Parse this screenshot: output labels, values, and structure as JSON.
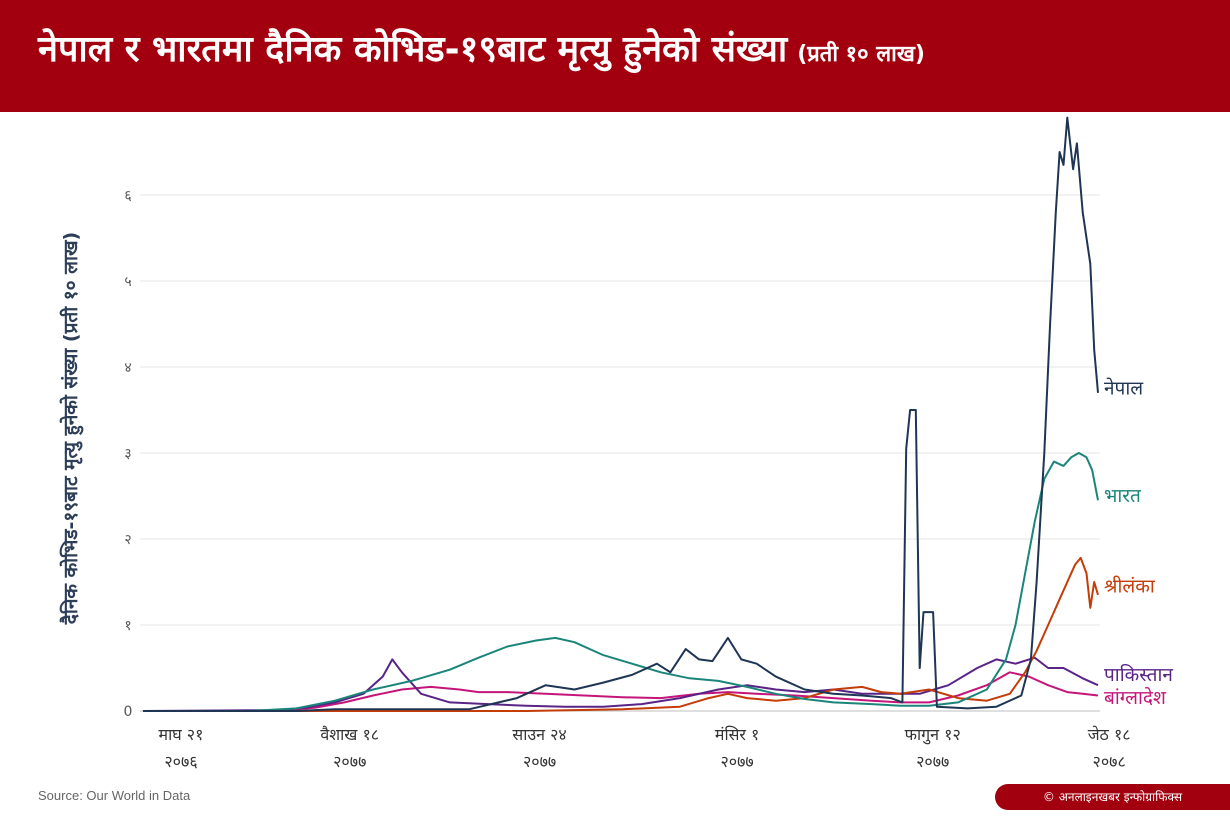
{
  "header": {
    "title": "नेपाल र भारतमा दैनिक कोभिड-१९बाट मृत्यु हुनेको संख्या",
    "title_suffix": "(प्रती १० लाख)"
  },
  "footer": {
    "source": "Source: Our World in Data",
    "credit": "© अनलाइनखबर इन्फोग्राफिक्स"
  },
  "chart_data": {
    "type": "line",
    "ylabel": "दैनिक कोभिड-१९बाट मृत्यु हुनेको संख्या (प्रती १० लाख)",
    "ylim": [
      0,
      6.8
    ],
    "y_ticks": [
      {
        "value": 0,
        "label": "0"
      },
      {
        "value": 1,
        "label": "१"
      },
      {
        "value": 2,
        "label": "२"
      },
      {
        "value": 3,
        "label": "३"
      },
      {
        "value": 4,
        "label": "४"
      },
      {
        "value": 5,
        "label": "५"
      },
      {
        "value": 6,
        "label": "६"
      }
    ],
    "x_ticks": [
      {
        "day": 0,
        "label": "माघ २१",
        "year": "२०७६"
      },
      {
        "day": 88,
        "label": "वैशाख १८",
        "year": "२०७७"
      },
      {
        "day": 187,
        "label": "साउन २४",
        "year": "२०७७"
      },
      {
        "day": 290,
        "label": "मंसिर १",
        "year": "२०७७"
      },
      {
        "day": 392,
        "label": "फागुन १२",
        "year": "२०७७"
      },
      {
        "day": 484,
        "label": "जेठ १८",
        "year": "२०७८"
      }
    ],
    "grid": true,
    "legend": "line-end labels",
    "series": [
      {
        "name": "नेपाल",
        "color": "#1f3554",
        "points": [
          [
            0,
            0
          ],
          [
            80,
            0
          ],
          [
            100,
            0.02
          ],
          [
            140,
            0.02
          ],
          [
            170,
            0.02
          ],
          [
            195,
            0.15
          ],
          [
            210,
            0.3
          ],
          [
            225,
            0.25
          ],
          [
            240,
            0.33
          ],
          [
            255,
            0.42
          ],
          [
            268,
            0.55
          ],
          [
            275,
            0.45
          ],
          [
            283,
            0.72
          ],
          [
            290,
            0.6
          ],
          [
            297,
            0.58
          ],
          [
            305,
            0.85
          ],
          [
            312,
            0.6
          ],
          [
            320,
            0.55
          ],
          [
            330,
            0.4
          ],
          [
            345,
            0.25
          ],
          [
            360,
            0.2
          ],
          [
            375,
            0.18
          ],
          [
            390,
            0.15
          ],
          [
            396,
            0.1
          ],
          [
            398,
            3.05
          ],
          [
            400,
            3.5
          ],
          [
            403,
            3.5
          ],
          [
            405,
            0.5
          ],
          [
            407,
            1.15
          ],
          [
            412,
            1.15
          ],
          [
            414,
            0.05
          ],
          [
            430,
            0.03
          ],
          [
            445,
            0.05
          ],
          [
            458,
            0.18
          ],
          [
            463,
            0.6
          ],
          [
            466,
            1.5
          ],
          [
            470,
            3.0
          ],
          [
            473,
            4.5
          ],
          [
            476,
            5.8
          ],
          [
            478,
            6.5
          ],
          [
            480,
            6.35
          ],
          [
            482,
            6.9
          ],
          [
            485,
            6.3
          ],
          [
            487,
            6.6
          ],
          [
            490,
            5.8
          ],
          [
            494,
            5.2
          ],
          [
            496,
            4.2
          ],
          [
            498,
            3.7
          ]
        ]
      },
      {
        "name": "भारत",
        "color": "#1a857a",
        "points": [
          [
            0,
            0
          ],
          [
            55,
            0
          ],
          [
            80,
            0.03
          ],
          [
            100,
            0.12
          ],
          [
            120,
            0.25
          ],
          [
            140,
            0.35
          ],
          [
            160,
            0.48
          ],
          [
            175,
            0.62
          ],
          [
            190,
            0.75
          ],
          [
            205,
            0.82
          ],
          [
            215,
            0.85
          ],
          [
            225,
            0.8
          ],
          [
            240,
            0.65
          ],
          [
            255,
            0.55
          ],
          [
            270,
            0.45
          ],
          [
            285,
            0.38
          ],
          [
            300,
            0.35
          ],
          [
            315,
            0.28
          ],
          [
            330,
            0.2
          ],
          [
            345,
            0.14
          ],
          [
            360,
            0.1
          ],
          [
            380,
            0.08
          ],
          [
            395,
            0.06
          ],
          [
            410,
            0.06
          ],
          [
            425,
            0.1
          ],
          [
            440,
            0.25
          ],
          [
            450,
            0.6
          ],
          [
            455,
            1.0
          ],
          [
            460,
            1.6
          ],
          [
            465,
            2.2
          ],
          [
            470,
            2.7
          ],
          [
            475,
            2.9
          ],
          [
            480,
            2.85
          ],
          [
            484,
            2.95
          ],
          [
            488,
            3.0
          ],
          [
            492,
            2.95
          ],
          [
            495,
            2.8
          ],
          [
            498,
            2.45
          ]
        ]
      },
      {
        "name": "श्रीलंका",
        "color": "#c43c07",
        "points": [
          [
            0,
            0
          ],
          [
            100,
            0
          ],
          [
            200,
            0
          ],
          [
            250,
            0.02
          ],
          [
            280,
            0.05
          ],
          [
            295,
            0.15
          ],
          [
            305,
            0.2
          ],
          [
            315,
            0.15
          ],
          [
            330,
            0.12
          ],
          [
            345,
            0.15
          ],
          [
            360,
            0.25
          ],
          [
            375,
            0.28
          ],
          [
            385,
            0.22
          ],
          [
            395,
            0.2
          ],
          [
            410,
            0.25
          ],
          [
            425,
            0.15
          ],
          [
            440,
            0.12
          ],
          [
            452,
            0.2
          ],
          [
            460,
            0.45
          ],
          [
            466,
            0.7
          ],
          [
            470,
            0.9
          ],
          [
            474,
            1.1
          ],
          [
            478,
            1.3
          ],
          [
            482,
            1.5
          ],
          [
            486,
            1.7
          ],
          [
            489,
            1.78
          ],
          [
            492,
            1.6
          ],
          [
            494,
            1.2
          ],
          [
            496,
            1.5
          ],
          [
            498,
            1.35
          ]
        ]
      },
      {
        "name": "पाकिस्तान",
        "color": "#5a2487",
        "points": [
          [
            0,
            0
          ],
          [
            70,
            0.01
          ],
          [
            85,
            0.04
          ],
          [
            100,
            0.1
          ],
          [
            115,
            0.2
          ],
          [
            125,
            0.4
          ],
          [
            130,
            0.6
          ],
          [
            135,
            0.45
          ],
          [
            145,
            0.2
          ],
          [
            160,
            0.1
          ],
          [
            180,
            0.08
          ],
          [
            200,
            0.06
          ],
          [
            220,
            0.05
          ],
          [
            240,
            0.05
          ],
          [
            260,
            0.08
          ],
          [
            280,
            0.15
          ],
          [
            300,
            0.25
          ],
          [
            315,
            0.3
          ],
          [
            330,
            0.25
          ],
          [
            345,
            0.22
          ],
          [
            360,
            0.25
          ],
          [
            375,
            0.2
          ],
          [
            390,
            0.2
          ],
          [
            405,
            0.2
          ],
          [
            420,
            0.3
          ],
          [
            435,
            0.5
          ],
          [
            445,
            0.6
          ],
          [
            455,
            0.55
          ],
          [
            465,
            0.62
          ],
          [
            472,
            0.5
          ],
          [
            480,
            0.5
          ],
          [
            490,
            0.38
          ],
          [
            498,
            0.3
          ]
        ]
      },
      {
        "name": "बांग्लादेश",
        "color": "#c4167a",
        "points": [
          [
            0,
            0
          ],
          [
            70,
            0
          ],
          [
            90,
            0.04
          ],
          [
            105,
            0.1
          ],
          [
            120,
            0.18
          ],
          [
            135,
            0.25
          ],
          [
            150,
            0.28
          ],
          [
            165,
            0.25
          ],
          [
            175,
            0.22
          ],
          [
            190,
            0.22
          ],
          [
            210,
            0.2
          ],
          [
            230,
            0.18
          ],
          [
            250,
            0.16
          ],
          [
            270,
            0.15
          ],
          [
            290,
            0.2
          ],
          [
            305,
            0.22
          ],
          [
            320,
            0.2
          ],
          [
            340,
            0.18
          ],
          [
            360,
            0.15
          ],
          [
            380,
            0.12
          ],
          [
            395,
            0.1
          ],
          [
            410,
            0.1
          ],
          [
            425,
            0.18
          ],
          [
            440,
            0.3
          ],
          [
            452,
            0.45
          ],
          [
            462,
            0.4
          ],
          [
            472,
            0.3
          ],
          [
            482,
            0.22
          ],
          [
            490,
            0.2
          ],
          [
            498,
            0.18
          ]
        ]
      }
    ]
  }
}
